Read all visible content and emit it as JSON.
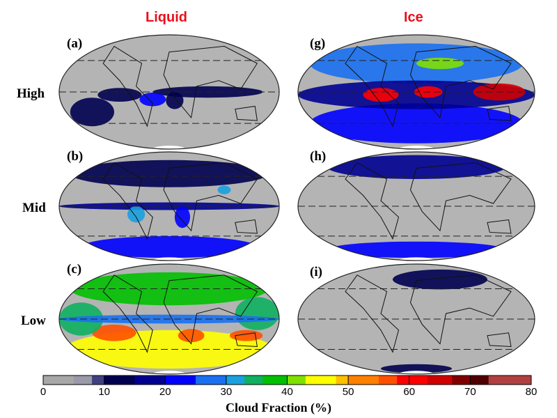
{
  "columns": [
    {
      "label": "Liquid"
    },
    {
      "label": "Ice"
    }
  ],
  "rows": [
    {
      "label": "High"
    },
    {
      "label": "Mid"
    },
    {
      "label": "Low"
    }
  ],
  "panels": [
    {
      "label": "(a)",
      "phase": "Liquid",
      "level": "High"
    },
    {
      "label": "(b)",
      "phase": "Liquid",
      "level": "Mid"
    },
    {
      "label": "(c)",
      "phase": "Liquid",
      "level": "Low"
    },
    {
      "label": "(g)",
      "phase": "Ice",
      "level": "High"
    },
    {
      "label": "(h)",
      "phase": "Ice",
      "level": "Mid"
    },
    {
      "label": "(i)",
      "phase": "Ice",
      "level": "Low"
    }
  ],
  "colorbar": {
    "title": "Cloud Fraction (%)",
    "range": [
      0,
      80
    ],
    "ticks": [
      "0",
      "10",
      "20",
      "30",
      "40",
      "50",
      "60",
      "70",
      "80"
    ],
    "stops": [
      {
        "v": 0,
        "c": "#a8a8a8"
      },
      {
        "v": 5,
        "c": "#9a9aa8"
      },
      {
        "v": 8,
        "c": "#404080"
      },
      {
        "v": 10,
        "c": "#000050"
      },
      {
        "v": 15,
        "c": "#000090"
      },
      {
        "v": 20,
        "c": "#0000ff"
      },
      {
        "v": 25,
        "c": "#1a70f0"
      },
      {
        "v": 30,
        "c": "#1aa0e0"
      },
      {
        "v": 33,
        "c": "#10b060"
      },
      {
        "v": 36,
        "c": "#00c000"
      },
      {
        "v": 40,
        "c": "#80e000"
      },
      {
        "v": 43,
        "c": "#ffff00"
      },
      {
        "v": 48,
        "c": "#ffc000"
      },
      {
        "v": 50,
        "c": "#ff8000"
      },
      {
        "v": 55,
        "c": "#ff5000"
      },
      {
        "v": 58,
        "c": "#ff0000"
      },
      {
        "v": 63,
        "c": "#d00000"
      },
      {
        "v": 67,
        "c": "#800000"
      },
      {
        "v": 70,
        "c": "#500000"
      },
      {
        "v": 73,
        "c": "#b04040"
      },
      {
        "v": 80,
        "c": "#ff8080"
      }
    ]
  }
}
